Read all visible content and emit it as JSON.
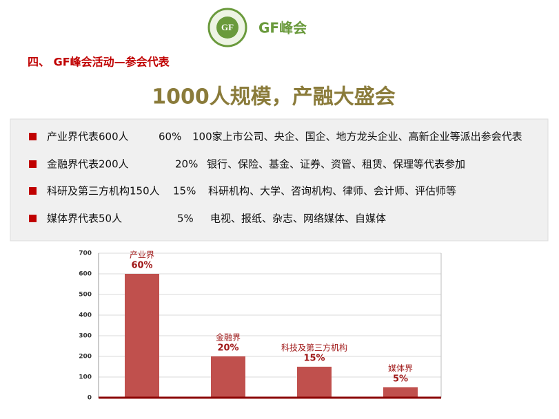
{
  "header": {
    "logo_text": "GF",
    "brand": "GF峰会"
  },
  "section_title": "四、 GF峰会活动—参会代表",
  "headline": "1000人规模，产融大盛会",
  "items": [
    {
      "label": "产业界代表600人",
      "share": "60%",
      "desc": "100家上市公司、央企、国企、地方龙头企业、高新企业等派出参会代表"
    },
    {
      "label": "金融界代表200人",
      "share": "20%",
      "desc": "银行、保险、基金、证券、资管、租赁、保理等代表参加"
    },
    {
      "label": "科研及第三方机构150人",
      "share": "15%",
      "desc": "科研机构、大学、咨询机构、律师、会计师、评估师等"
    },
    {
      "label": "媒体界代表50人",
      "share": "5%",
      "desc": "电视、报纸、杂志、网络媒体、自媒体"
    }
  ],
  "chart_data": {
    "type": "bar",
    "categories": [
      "产业界",
      "金融界",
      "科技及第三方机构",
      "媒体界"
    ],
    "values": [
      600,
      200,
      150,
      50
    ],
    "share_labels": [
      "60%",
      "20%",
      "15%",
      "5%"
    ],
    "color": "#c0504d",
    "ylim": [
      0,
      700
    ],
    "yticks": [
      0,
      100,
      200,
      300,
      400,
      500,
      600,
      700
    ],
    "grid": true
  }
}
